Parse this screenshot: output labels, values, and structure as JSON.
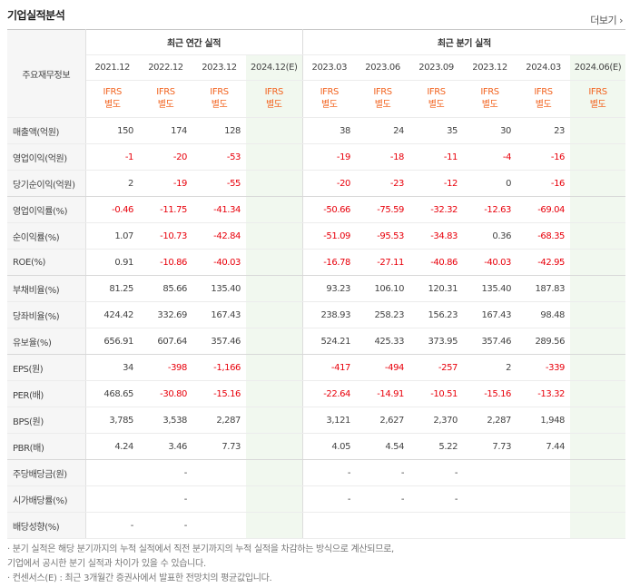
{
  "title": "기업실적분석",
  "more_label": "더보기",
  "corner_label": "주요재무정보",
  "groups": {
    "annual": "최근 연간 실적",
    "quarter": "최근 분기 실적"
  },
  "periods": [
    "2021.12",
    "2022.12",
    "2023.12",
    "2024.12(E)",
    "2023.03",
    "2023.06",
    "2023.09",
    "2023.12",
    "2024.03",
    "2024.06(E)"
  ],
  "standard": [
    "IFRS\n별도",
    "IFRS\n별도",
    "IFRS\n별도",
    "IFRS\n별도",
    "IFRS\n별도",
    "IFRS\n별도",
    "IFRS\n별도",
    "IFRS\n별도",
    "IFRS\n별도",
    "IFRS\n별도"
  ],
  "rows": [
    {
      "label": "매출액(억원)",
      "values": [
        "150",
        "174",
        "128",
        "",
        "38",
        "24",
        "35",
        "30",
        "23",
        ""
      ]
    },
    {
      "label": "영업이익(억원)",
      "values": [
        "-1",
        "-20",
        "-53",
        "",
        "-19",
        "-18",
        "-11",
        "-4",
        "-16",
        ""
      ]
    },
    {
      "label": "당기순이익(억원)",
      "values": [
        "2",
        "-19",
        "-55",
        "",
        "-20",
        "-23",
        "-12",
        "0",
        "-16",
        ""
      ]
    },
    {
      "label": "영업이익률(%)",
      "values": [
        "-0.46",
        "-11.75",
        "-41.34",
        "",
        "-50.66",
        "-75.59",
        "-32.32",
        "-12.63",
        "-69.04",
        ""
      ]
    },
    {
      "label": "순이익률(%)",
      "values": [
        "1.07",
        "-10.73",
        "-42.84",
        "",
        "-51.09",
        "-95.53",
        "-34.83",
        "0.36",
        "-68.35",
        ""
      ]
    },
    {
      "label": "ROE(%)",
      "values": [
        "0.91",
        "-10.86",
        "-40.03",
        "",
        "-16.78",
        "-27.11",
        "-40.86",
        "-40.03",
        "-42.95",
        ""
      ]
    },
    {
      "label": "부채비율(%)",
      "values": [
        "81.25",
        "85.66",
        "135.40",
        "",
        "93.23",
        "106.10",
        "120.31",
        "135.40",
        "187.83",
        ""
      ]
    },
    {
      "label": "당좌비율(%)",
      "values": [
        "424.42",
        "332.69",
        "167.43",
        "",
        "238.93",
        "258.23",
        "156.23",
        "167.43",
        "98.48",
        ""
      ]
    },
    {
      "label": "유보율(%)",
      "values": [
        "656.91",
        "607.64",
        "357.46",
        "",
        "524.21",
        "425.33",
        "373.95",
        "357.46",
        "289.56",
        ""
      ]
    },
    {
      "label": "EPS(원)",
      "values": [
        "34",
        "-398",
        "-1,166",
        "",
        "-417",
        "-494",
        "-257",
        "2",
        "-339",
        ""
      ]
    },
    {
      "label": "PER(배)",
      "values": [
        "468.65",
        "-30.80",
        "-15.16",
        "",
        "-22.64",
        "-14.91",
        "-10.51",
        "-15.16",
        "-13.32",
        ""
      ]
    },
    {
      "label": "BPS(원)",
      "values": [
        "3,785",
        "3,538",
        "2,287",
        "",
        "3,121",
        "2,627",
        "2,370",
        "2,287",
        "1,948",
        ""
      ]
    },
    {
      "label": "PBR(배)",
      "values": [
        "4.24",
        "3.46",
        "7.73",
        "",
        "4.05",
        "4.54",
        "5.22",
        "7.73",
        "7.44",
        ""
      ]
    },
    {
      "label": "주당배당금(원)",
      "values": [
        "",
        "-",
        "",
        "",
        "-",
        "-",
        "-",
        "",
        "",
        ""
      ]
    },
    {
      "label": "시가배당률(%)",
      "values": [
        "",
        "-",
        "",
        "",
        "-",
        "-",
        "-",
        "",
        "",
        ""
      ]
    },
    {
      "label": "배당성향(%)",
      "values": [
        "-",
        "-",
        "",
        "",
        "",
        "",
        "",
        "",
        "",
        ""
      ]
    }
  ],
  "notes": [
    "· 분기 실적은 해당 분기까지의 누적 실적에서 직전 분기까지의 누적 실적을 차감하는 방식으로 계산되므로,",
    "  기업에서 공시한 분기 실적과 차이가 있을 수 있습니다.",
    "· 컨센서스(E) : 최근 3개월간 증권사에서 발표한 전망치의 평균값입니다."
  ],
  "colors": {
    "negative": "#e8000b",
    "ifrs": "#f26522",
    "estimate_bg": "#f1f8ef",
    "label_bg": "#f6f6f6"
  }
}
